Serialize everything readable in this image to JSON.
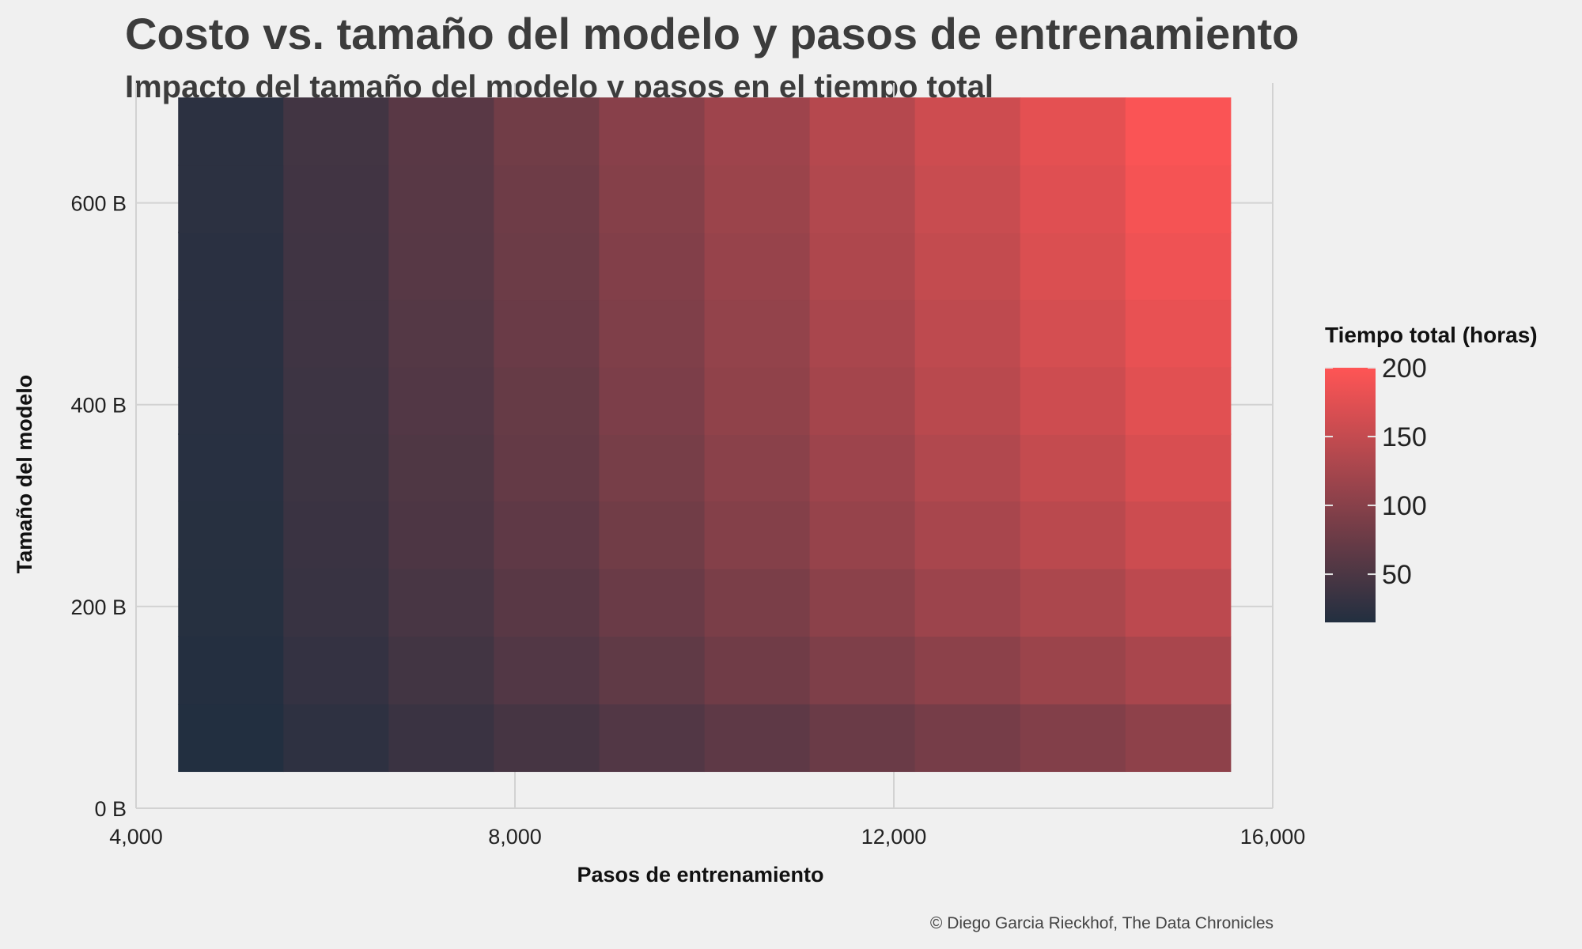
{
  "chart_data": {
    "type": "heatmap",
    "title": "Costo vs. tamaño del modelo y pasos de entrenamiento",
    "subtitle": "Impacto del tamaño del modelo y pasos en el tiempo total",
    "xlabel": "Pasos de entrenamiento",
    "ylabel": "Tamaño del modelo",
    "caption": "© Diego Garcia Rieckhof, The Data Chronicles",
    "xlim": [
      4000,
      16000
    ],
    "ylim": [
      0,
      700
    ],
    "x_ticks": [
      4000,
      8000,
      12000,
      16000
    ],
    "x_tick_labels": [
      "4,000",
      "8,000",
      "12,000",
      "16,000"
    ],
    "y_ticks": [
      0,
      200,
      400,
      600
    ],
    "y_tick_labels": [
      "0 B",
      "200 B",
      "400 B",
      "600 B"
    ],
    "x": [
      5000,
      6111,
      7222,
      8333,
      9444,
      10556,
      11667,
      12778,
      13889,
      15000
    ],
    "y": [
      70,
      137,
      204,
      271,
      338,
      404,
      471,
      538,
      604,
      671
    ],
    "tile_width": 1111,
    "tile_height": 67,
    "z": [
      [
        15,
        25,
        35,
        45,
        55,
        65,
        75,
        85,
        95,
        105
      ],
      [
        17,
        30,
        42,
        55,
        67,
        80,
        92,
        104,
        116,
        128
      ],
      [
        18,
        33,
        47,
        61,
        75,
        89,
        103,
        117,
        130,
        144
      ],
      [
        19,
        35,
        51,
        66,
        81,
        97,
        112,
        127,
        142,
        157
      ],
      [
        20,
        37,
        53,
        70,
        86,
        102,
        118,
        135,
        151,
        167
      ],
      [
        21,
        38,
        55,
        72,
        90,
        107,
        124,
        141,
        158,
        175
      ],
      [
        22,
        39,
        57,
        75,
        93,
        110,
        128,
        146,
        164,
        181
      ],
      [
        22,
        40,
        59,
        77,
        95,
        113,
        132,
        150,
        169,
        187
      ],
      [
        23,
        41,
        60,
        79,
        98,
        116,
        135,
        154,
        173,
        192
      ],
      [
        23,
        42,
        61,
        81,
        100,
        119,
        138,
        158,
        177,
        196
      ]
    ],
    "grid": true,
    "legend": {
      "title": "Tiempo total (horas)",
      "position": "right",
      "ticks": [
        50,
        100,
        150,
        200
      ],
      "tick_labels": [
        "50",
        "100",
        "150",
        "200"
      ],
      "range": [
        15,
        200
      ],
      "colors": {
        "low": "#222f40",
        "high": "#ff5555"
      }
    }
  }
}
